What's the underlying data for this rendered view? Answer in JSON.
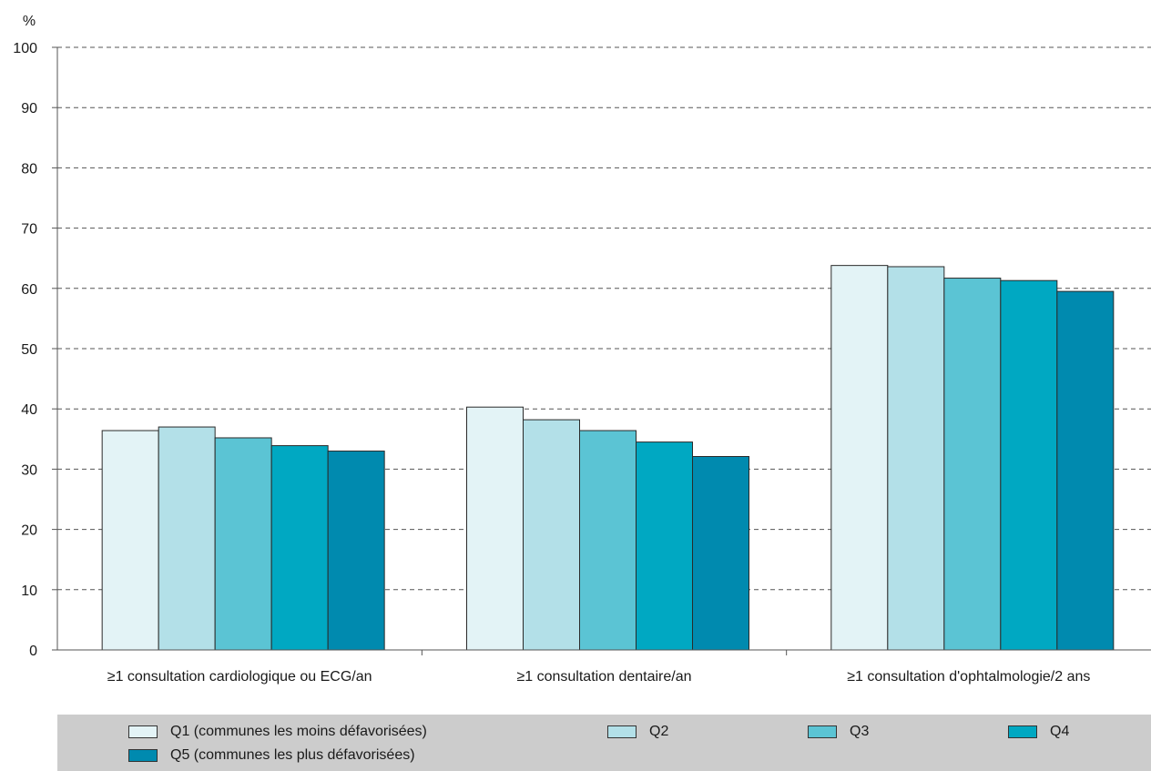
{
  "chart_data": {
    "type": "bar",
    "ylabel": "%",
    "ylim": [
      0,
      100
    ],
    "yticks": [
      0,
      10,
      20,
      30,
      40,
      50,
      60,
      70,
      80,
      90,
      100
    ],
    "grid": true,
    "legend_position": "bottom",
    "categories": [
      "≥1 consultation cardiologique ou ECG/an",
      "≥1 consultation dentaire/an",
      "≥1 consultation d'ophtalmologie/2 ans"
    ],
    "series": [
      {
        "name": "Q1 (communes les moins défavorisées)",
        "color": "#e3f3f6",
        "values": [
          36.4,
          40.3,
          63.8
        ]
      },
      {
        "name": "Q2",
        "color": "#b3e0e8",
        "values": [
          37.0,
          38.2,
          63.6
        ]
      },
      {
        "name": "Q3",
        "color": "#5bc4d4",
        "values": [
          35.2,
          36.4,
          61.7
        ]
      },
      {
        "name": "Q4",
        "color": "#00a8c2",
        "values": [
          33.9,
          34.5,
          61.3
        ]
      },
      {
        "name": "Q5 (communes les plus défavorisées)",
        "color": "#008aaf",
        "values": [
          33.0,
          32.1,
          59.5
        ]
      }
    ]
  },
  "legend": {
    "background": "#cccccc"
  }
}
